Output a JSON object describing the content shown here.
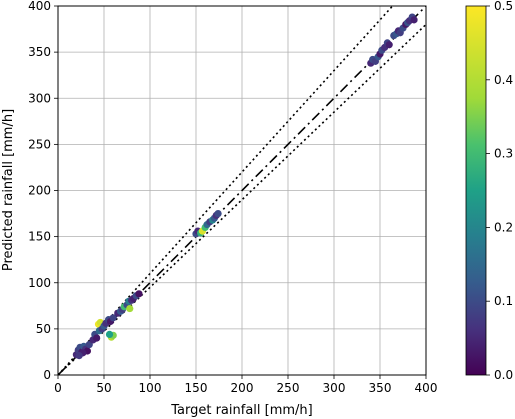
{
  "chart_data": {
    "type": "scatter",
    "xlabel": "Target rainfall [mm/h]",
    "ylabel": "Predicted rainfall [mm/h]",
    "xlim": [
      0,
      400
    ],
    "ylim": [
      0,
      400
    ],
    "x_ticks": [
      "0",
      "50",
      "100",
      "150",
      "200",
      "250",
      "300",
      "350",
      "400"
    ],
    "y_ticks": [
      "0",
      "50",
      "100",
      "150",
      "200",
      "250",
      "300",
      "350",
      "400"
    ],
    "grid": true,
    "colorbar": {
      "colormap": "viridis",
      "range": [
        0.0,
        0.5
      ],
      "tick_labels": [
        "0.0",
        "0.1",
        "0.2",
        "0.3",
        "0.4",
        "0.5"
      ]
    },
    "reference_lines": [
      {
        "style": "dash-dot",
        "slope": 1.0
      },
      {
        "style": "dotted",
        "slope": 1.1
      },
      {
        "style": "dotted",
        "slope": 0.95
      }
    ],
    "points": [
      {
        "x": 20,
        "y": 22,
        "c": 0.05
      },
      {
        "x": 22,
        "y": 27,
        "c": 0.08
      },
      {
        "x": 24,
        "y": 30,
        "c": 0.1
      },
      {
        "x": 26,
        "y": 25,
        "c": 0.03
      },
      {
        "x": 28,
        "y": 31,
        "c": 0.12
      },
      {
        "x": 30,
        "y": 28,
        "c": 0.06
      },
      {
        "x": 32,
        "y": 26,
        "c": 0.02
      },
      {
        "x": 34,
        "y": 33,
        "c": 0.09
      },
      {
        "x": 27,
        "y": 24,
        "c": 0.04
      },
      {
        "x": 23,
        "y": 21,
        "c": 0.07
      },
      {
        "x": 38,
        "y": 38,
        "c": 0.05
      },
      {
        "x": 40,
        "y": 44,
        "c": 0.1
      },
      {
        "x": 42,
        "y": 40,
        "c": 0.03
      },
      {
        "x": 44,
        "y": 55,
        "c": 0.48
      },
      {
        "x": 46,
        "y": 57,
        "c": 0.44
      },
      {
        "x": 45,
        "y": 48,
        "c": 0.15
      },
      {
        "x": 48,
        "y": 50,
        "c": 0.08
      },
      {
        "x": 50,
        "y": 53,
        "c": 0.12
      },
      {
        "x": 52,
        "y": 56,
        "c": 0.06
      },
      {
        "x": 55,
        "y": 60,
        "c": 0.1
      },
      {
        "x": 57,
        "y": 58,
        "c": 0.03
      },
      {
        "x": 60,
        "y": 62,
        "c": 0.09
      },
      {
        "x": 58,
        "y": 41,
        "c": 0.4
      },
      {
        "x": 60,
        "y": 43,
        "c": 0.35
      },
      {
        "x": 56,
        "y": 44,
        "c": 0.25
      },
      {
        "x": 65,
        "y": 67,
        "c": 0.05
      },
      {
        "x": 68,
        "y": 69,
        "c": 0.12
      },
      {
        "x": 70,
        "y": 71,
        "c": 0.08
      },
      {
        "x": 72,
        "y": 74,
        "c": 0.3
      },
      {
        "x": 75,
        "y": 76,
        "c": 0.1
      },
      {
        "x": 77,
        "y": 80,
        "c": 0.18
      },
      {
        "x": 78,
        "y": 72,
        "c": 0.38
      },
      {
        "x": 80,
        "y": 81,
        "c": 0.06
      },
      {
        "x": 82,
        "y": 83,
        "c": 0.04
      },
      {
        "x": 85,
        "y": 86,
        "c": 0.1
      },
      {
        "x": 88,
        "y": 88,
        "c": 0.02
      },
      {
        "x": 150,
        "y": 153,
        "c": 0.1
      },
      {
        "x": 152,
        "y": 156,
        "c": 0.05
      },
      {
        "x": 155,
        "y": 154,
        "c": 0.28
      },
      {
        "x": 157,
        "y": 156,
        "c": 0.45
      },
      {
        "x": 160,
        "y": 160,
        "c": 0.3
      },
      {
        "x": 162,
        "y": 163,
        "c": 0.15
      },
      {
        "x": 165,
        "y": 166,
        "c": 0.08
      },
      {
        "x": 168,
        "y": 168,
        "c": 0.2
      },
      {
        "x": 170,
        "y": 170,
        "c": 0.12
      },
      {
        "x": 172,
        "y": 173,
        "c": 0.06
      },
      {
        "x": 174,
        "y": 175,
        "c": 0.1
      },
      {
        "x": 340,
        "y": 338,
        "c": 0.05
      },
      {
        "x": 342,
        "y": 342,
        "c": 0.1
      },
      {
        "x": 345,
        "y": 340,
        "c": 0.08
      },
      {
        "x": 348,
        "y": 345,
        "c": 0.12
      },
      {
        "x": 350,
        "y": 348,
        "c": 0.03
      },
      {
        "x": 352,
        "y": 352,
        "c": 0.1
      },
      {
        "x": 355,
        "y": 355,
        "c": 0.06
      },
      {
        "x": 358,
        "y": 360,
        "c": 0.09
      },
      {
        "x": 360,
        "y": 358,
        "c": 0.04
      },
      {
        "x": 365,
        "y": 368,
        "c": 0.1
      },
      {
        "x": 368,
        "y": 370,
        "c": 0.12
      },
      {
        "x": 370,
        "y": 373,
        "c": 0.05
      },
      {
        "x": 372,
        "y": 371,
        "c": 0.08
      },
      {
        "x": 375,
        "y": 376,
        "c": 0.1
      },
      {
        "x": 378,
        "y": 380,
        "c": 0.03
      },
      {
        "x": 380,
        "y": 382,
        "c": 0.11
      },
      {
        "x": 382,
        "y": 384,
        "c": 0.06
      },
      {
        "x": 385,
        "y": 388,
        "c": 0.09
      },
      {
        "x": 387,
        "y": 385,
        "c": 0.04
      }
    ]
  }
}
